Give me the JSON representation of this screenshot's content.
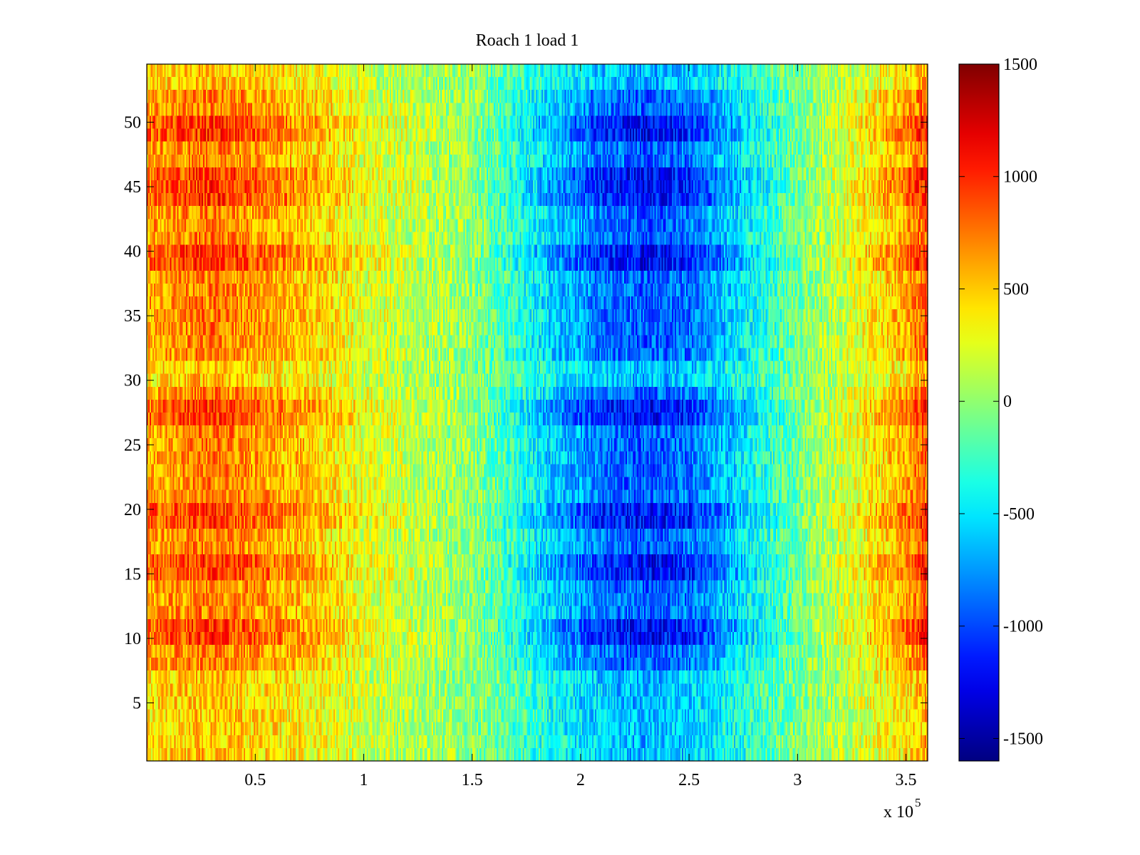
{
  "chart_data": {
    "type": "heatmap",
    "title": "Roach 1 load 1",
    "xlabel": "",
    "ylabel": "",
    "x_multiplier_label": "x 10",
    "x_multiplier_exponent": "5",
    "xlim": [
      0.0,
      3.6
    ],
    "ylim": [
      0.5,
      54.5
    ],
    "rows": 54,
    "x_ticks": [
      0.5,
      1,
      1.5,
      2,
      2.5,
      3,
      3.5
    ],
    "x_tick_labels": [
      "0.5",
      "1",
      "1.5",
      "2",
      "2.5",
      "3",
      "3.5"
    ],
    "y_ticks": [
      5,
      10,
      15,
      20,
      25,
      30,
      35,
      40,
      45,
      50
    ],
    "y_tick_labels": [
      "5",
      "10",
      "15",
      "20",
      "25",
      "30",
      "35",
      "40",
      "45",
      "50"
    ],
    "colorbar": {
      "clim": [
        -1600,
        1500
      ],
      "ticks": [
        1500,
        1000,
        500,
        0,
        -500,
        -1000,
        -1500
      ],
      "tick_labels": [
        "1500",
        "1000",
        "500",
        "0",
        "-500",
        "-1000",
        "-1500"
      ],
      "colormap": "jet"
    },
    "x_profile": {
      "x": [
        0.0,
        0.3,
        0.5,
        0.8,
        1.0,
        1.3,
        1.5,
        1.7,
        1.9,
        2.1,
        2.3,
        2.5,
        2.7,
        2.9,
        3.1,
        3.3,
        3.5,
        3.6
      ],
      "value": [
        600,
        750,
        650,
        450,
        250,
        100,
        0,
        -300,
        -600,
        -850,
        -950,
        -850,
        -550,
        -250,
        50,
        300,
        600,
        850
      ]
    },
    "strong_rows": [
      10,
      11,
      15,
      16,
      19,
      20,
      27,
      28,
      39,
      40,
      44,
      45,
      46,
      49,
      50
    ],
    "weak_rows": [
      1,
      2,
      3,
      4,
      5,
      6,
      7,
      30,
      31,
      53,
      54
    ],
    "noise_level": 300
  }
}
